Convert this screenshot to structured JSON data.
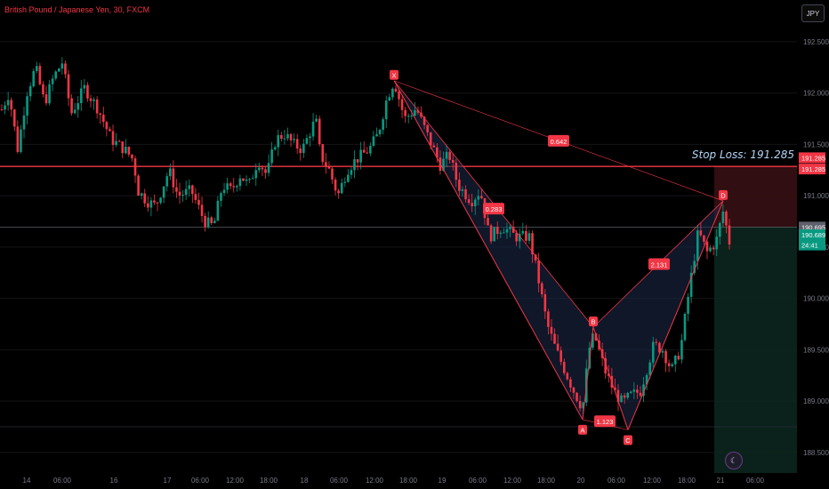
{
  "header": {
    "symbol_title": "British Pound / Japanese Yen, 30, FXCM",
    "currency_button": "JPY"
  },
  "annotations": {
    "stop_loss_text": "Stop Loss: 191.285"
  },
  "price_labels": [
    {
      "text": "191.285",
      "price": 191.37,
      "color": "#f23645"
    },
    {
      "text": "191.285",
      "price": 191.26,
      "color": "#f23645"
    },
    {
      "text": "190.695",
      "price": 190.695,
      "color": "#5d606b"
    },
    {
      "text": "190.689",
      "price": 190.62,
      "color": "#089981"
    },
    {
      "text": "24:41",
      "price": 190.52,
      "color": "#089981"
    }
  ],
  "colors": {
    "background": "#000000",
    "up_candle": "#089981",
    "down_candle": "#f23645",
    "pattern_line": "#f23645",
    "pattern_fill": "#1c2a4a",
    "stop_zone": "#3a1014",
    "target_zone": "#0c2820"
  },
  "chart_data": {
    "type": "candlestick",
    "title": "British Pound / Japanese Yen, 30, FXCM",
    "ylim": [
      188.3,
      192.75
    ],
    "y_ticks": [
      "192.500",
      "192.000",
      "191.500",
      "191.000",
      "190.500",
      "190.000",
      "189.500",
      "189.000",
      "188.500"
    ],
    "x_tick_labels": [
      "14",
      "06:00",
      "16",
      "17",
      "06:00",
      "12:00",
      "18:00",
      "18",
      "06:00",
      "12:00",
      "18:00",
      "19",
      "06:00",
      "12:00",
      "18:00",
      "20",
      "06:00",
      "12:00",
      "18:00",
      "21",
      "06:00"
    ],
    "candle_count": 230,
    "path": [
      [
        0,
        191.8
      ],
      [
        10,
        192.0
      ],
      [
        20,
        191.45
      ],
      [
        30,
        192.0
      ],
      [
        40,
        192.25
      ],
      [
        50,
        191.9
      ],
      [
        60,
        192.15
      ],
      [
        70,
        192.3
      ],
      [
        80,
        191.8
      ],
      [
        95,
        192.05
      ],
      [
        110,
        191.85
      ],
      [
        125,
        191.55
      ],
      [
        140,
        191.45
      ],
      [
        150,
        191.35
      ],
      [
        155,
        191.05
      ],
      [
        165,
        190.95
      ],
      [
        175,
        190.9
      ],
      [
        190,
        191.25
      ],
      [
        200,
        191.0
      ],
      [
        215,
        191.05
      ],
      [
        230,
        190.75
      ],
      [
        240,
        190.7
      ],
      [
        250,
        191.1
      ],
      [
        260,
        191.05
      ],
      [
        270,
        191.2
      ],
      [
        280,
        191.1
      ],
      [
        290,
        191.35
      ],
      [
        300,
        191.2
      ],
      [
        310,
        191.55
      ],
      [
        320,
        191.6
      ],
      [
        330,
        191.5
      ],
      [
        340,
        191.45
      ],
      [
        355,
        191.75
      ],
      [
        360,
        191.4
      ],
      [
        370,
        191.25
      ],
      [
        380,
        191.0
      ],
      [
        390,
        191.25
      ],
      [
        400,
        191.35
      ],
      [
        415,
        191.45
      ],
      [
        425,
        191.6
      ],
      [
        435,
        191.95
      ],
      [
        443,
        192.12
      ],
      [
        455,
        191.75
      ],
      [
        468,
        191.85
      ],
      [
        480,
        191.6
      ],
      [
        495,
        191.3
      ],
      [
        505,
        191.4
      ],
      [
        515,
        191.1
      ],
      [
        530,
        190.95
      ],
      [
        540,
        191.05
      ],
      [
        550,
        190.6
      ],
      [
        565,
        190.7
      ],
      [
        580,
        190.6
      ],
      [
        595,
        190.6
      ],
      [
        605,
        190.2
      ],
      [
        615,
        189.75
      ],
      [
        625,
        189.5
      ],
      [
        635,
        189.3
      ],
      [
        645,
        189.1
      ],
      [
        655,
        188.93
      ],
      [
        662,
        189.5
      ],
      [
        668,
        189.65
      ],
      [
        680,
        189.3
      ],
      [
        690,
        189.1
      ],
      [
        700,
        188.98
      ],
      [
        708,
        189.05
      ],
      [
        720,
        189.1
      ],
      [
        735,
        189.55
      ],
      [
        745,
        189.5
      ],
      [
        755,
        189.3
      ],
      [
        765,
        189.5
      ],
      [
        775,
        190.1
      ],
      [
        785,
        190.65
      ],
      [
        795,
        190.45
      ],
      [
        805,
        190.55
      ],
      [
        813,
        190.85
      ],
      [
        820,
        190.55
      ]
    ],
    "series": [
      {
        "name": "XABCD pattern",
        "points": [
          {
            "label": "X",
            "x": 443,
            "y": 192.12
          },
          {
            "label": "A",
            "x": 655,
            "y": 188.82
          },
          {
            "label": "B",
            "x": 667,
            "y": 189.72
          },
          {
            "label": "C",
            "x": 706,
            "y": 188.72
          },
          {
            "label": "D",
            "x": 813,
            "y": 190.95
          }
        ]
      }
    ],
    "ratios": [
      {
        "text": "0.642",
        "x": 628,
        "y": 191.53
      },
      {
        "text": "0.283",
        "x": 555,
        "y": 190.87
      },
      {
        "text": "2.131",
        "x": 741,
        "y": 190.33
      },
      {
        "text": "1.123",
        "x": 680,
        "y": 188.8
      }
    ],
    "horizontal_lines": [
      {
        "name": "stop-loss-line",
        "price": 191.285,
        "color": "#f23645"
      },
      {
        "name": "current-price-line",
        "price": 190.695,
        "color": "#5d606b"
      },
      {
        "name": "target-line",
        "price": 188.75,
        "color": "#2a2e39"
      }
    ],
    "position_tool": {
      "x_start": 803,
      "x_end": 896,
      "entry": 190.695,
      "stop": 191.285,
      "target": 188.3
    }
  }
}
